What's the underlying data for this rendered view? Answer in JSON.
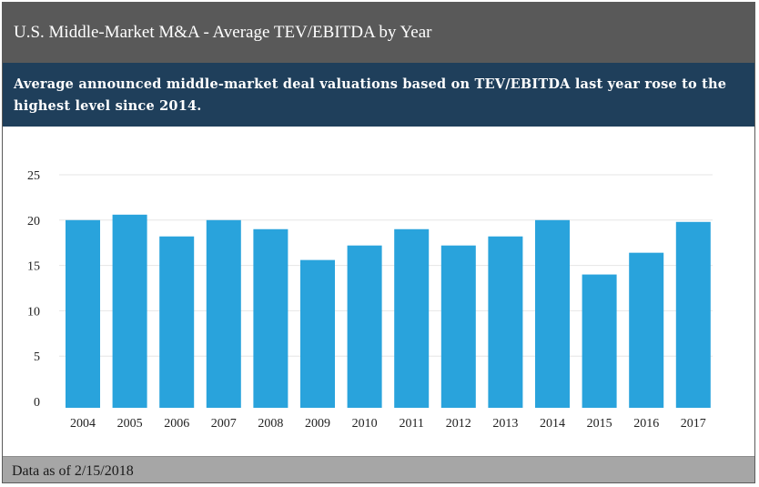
{
  "header": {
    "title": "U.S. Middle-Market M&A -  Average TEV/EBITDA by Year",
    "subtitle": "Average announced middle-market deal valuations based on TEV/EBITDA last year rose to the highest level since 2014."
  },
  "footer": {
    "note": "Data as of 2/15/2018"
  },
  "colors": {
    "bar": "#29a3dc",
    "gridline": "#e6e6e6"
  },
  "chart_data": {
    "type": "bar",
    "title": "U.S. Middle-Market M&A -  Average TEV/EBITDA by Year",
    "xlabel": "",
    "ylabel": "",
    "categories": [
      "2004",
      "2005",
      "2006",
      "2007",
      "2008",
      "2009",
      "2010",
      "2011",
      "2012",
      "2013",
      "2014",
      "2015",
      "2016",
      "2017"
    ],
    "values": [
      20,
      20.6,
      18.2,
      20,
      19,
      15.6,
      17.2,
      19,
      17.2,
      18.2,
      20,
      14,
      16.4,
      19.8
    ],
    "ylim": [
      0,
      25
    ],
    "yticks": [
      "0",
      "5",
      "10",
      "15",
      "20",
      "25"
    ],
    "ytick_values": [
      0,
      5,
      10,
      15,
      20,
      25
    ],
    "grid": true,
    "legend": "none"
  }
}
